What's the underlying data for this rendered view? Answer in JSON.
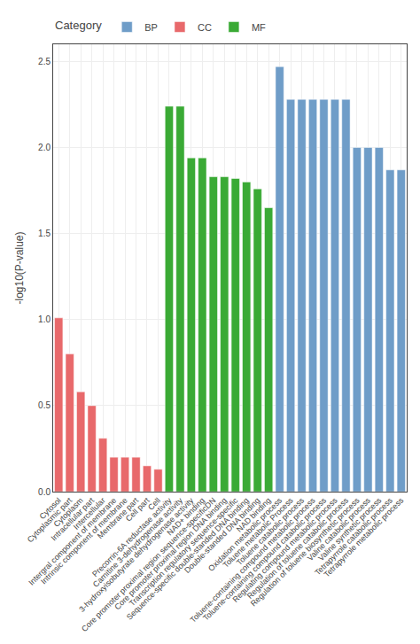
{
  "chart_data": {
    "type": "bar",
    "categories": [
      "Cytosol",
      "Cytoplasmic part",
      "Cytoplasm",
      "Intracellular part",
      "Intercellular",
      "Intergral component of membrane",
      "Intrinsic component of membrane",
      "Membrane part",
      "Cell part",
      "Cell",
      "Precorrin-6A reductase activity",
      "Carnitine 3-dehydrogenase activity",
      "3-hydroxyisobutyrate dehydrogenase activity",
      "NAD+ binding",
      "Core promoter proximal region sequence-specificDN",
      "Core promoter proximal region DNA binding",
      "Transcription regulatory sequence-specific",
      "Sequence-specific double-standed DNA binding",
      "Double-standed DNA binding",
      "NAD binding",
      "Oxidation metabolic process",
      "Toluene metabolic Process",
      "Toluene catabolic process",
      "Toluene-containing compound metabolic process",
      "Toluene-containing compound catabolic process",
      "Regulating compound metabolic process",
      "Regulation of toluene catabolic process",
      "Regulation of toluene biosynthetic process",
      "Valine catabolic process",
      "Valine synthetic process",
      "Tetrapyrrole catabolic process",
      "Tetrapyrrole metabolic process"
    ],
    "series": [
      {
        "name": "BP",
        "color": "#6F9DC8",
        "values": [
          null,
          null,
          null,
          null,
          null,
          null,
          null,
          null,
          null,
          null,
          null,
          null,
          null,
          null,
          null,
          null,
          null,
          null,
          null,
          null,
          2.47,
          2.28,
          2.28,
          2.28,
          2.28,
          2.28,
          2.28,
          2.0,
          2.0,
          2.0,
          1.87,
          1.87
        ]
      },
      {
        "name": "CC",
        "color": "#E8696B",
        "values": [
          1.01,
          0.8,
          0.58,
          0.5,
          0.31,
          0.2,
          0.2,
          0.2,
          0.15,
          0.13,
          null,
          null,
          null,
          null,
          null,
          null,
          null,
          null,
          null,
          null,
          null,
          null,
          null,
          null,
          null,
          null,
          null,
          null,
          null,
          null,
          null,
          null
        ]
      },
      {
        "name": "MF",
        "color": "#3AAA35",
        "values": [
          null,
          null,
          null,
          null,
          null,
          null,
          null,
          null,
          null,
          null,
          2.24,
          2.24,
          1.94,
          1.94,
          1.83,
          1.83,
          1.82,
          1.8,
          1.76,
          1.65,
          null,
          null,
          null,
          null,
          null,
          null,
          null,
          null,
          null,
          null,
          null,
          null
        ]
      }
    ],
    "ylabel": "-log10(P-value)",
    "legend_title": "Category",
    "legend": "top",
    "ylim": [
      0,
      2.6
    ],
    "yticks": [
      {
        "value": 0.0,
        "label": "0.0"
      },
      {
        "value": 0.5,
        "label": "0.5"
      },
      {
        "value": 1.0,
        "label": "1.0"
      },
      {
        "value": 1.5,
        "label": "1.5"
      },
      {
        "value": 2.0,
        "label": "2.0"
      },
      {
        "value": 2.5,
        "label": "2.5"
      }
    ],
    "grid": true
  }
}
